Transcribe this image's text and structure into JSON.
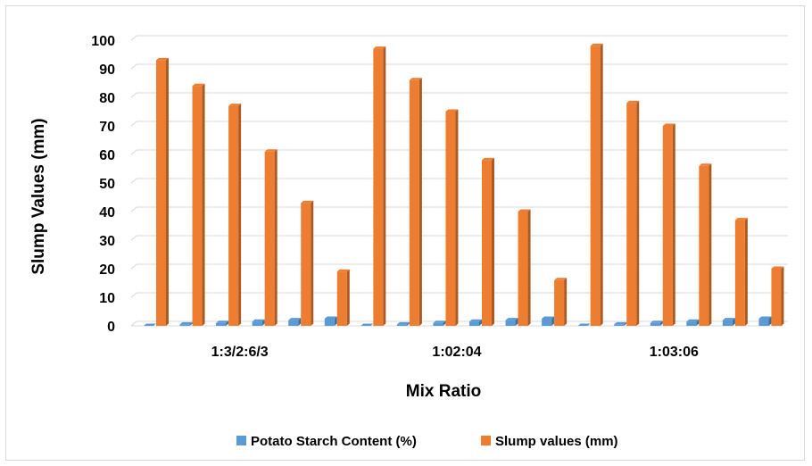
{
  "chart_data": {
    "type": "bar",
    "title": "",
    "xlabel": "Mix Ratio",
    "ylabel": "Slump Values (mm)",
    "ylim": [
      0,
      100
    ],
    "yticks": [
      0,
      10,
      20,
      30,
      40,
      50,
      60,
      70,
      80,
      90,
      100
    ],
    "grid": true,
    "legend_position": "bottom",
    "categories": [
      "1:3/2:6/3",
      "1:02:04",
      "1:03:06"
    ],
    "bars_per_category": 6,
    "series": [
      {
        "name": "Potato Starch Content (%)",
        "color": "#5b9bd5",
        "values": [
          [
            0,
            0.5,
            1,
            1.5,
            2,
            2.5
          ],
          [
            0,
            0.5,
            1,
            1.5,
            2,
            2.5
          ],
          [
            0,
            0.5,
            1,
            1.5,
            2,
            2.5
          ]
        ]
      },
      {
        "name": "Slump values (mm)",
        "color": "#ed7d31",
        "values": [
          [
            93,
            84,
            77,
            61,
            43,
            19
          ],
          [
            97,
            86,
            75,
            58,
            40,
            16
          ],
          [
            98,
            78,
            70,
            56,
            37,
            20
          ]
        ]
      }
    ]
  }
}
